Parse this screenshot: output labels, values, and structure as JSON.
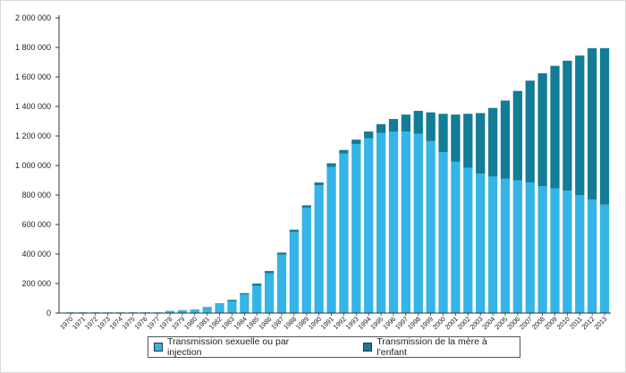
{
  "chart_data": {
    "type": "bar",
    "stacked": true,
    "categories": [
      "1970",
      "1971",
      "1972",
      "1973",
      "1974",
      "1975",
      "1976",
      "1977",
      "1978",
      "1979",
      "1980",
      "1981",
      "1982",
      "1983",
      "1984",
      "1985",
      "1986",
      "1987",
      "1988",
      "1989",
      "1990",
      "1991",
      "1992",
      "1993",
      "1994",
      "1995",
      "1996",
      "1997",
      "1998",
      "1999",
      "2000",
      "2001",
      "2002",
      "2003",
      "2004",
      "2005",
      "2006",
      "2007",
      "2008",
      "2009",
      "2010",
      "2011",
      "2012",
      "2013"
    ],
    "series": [
      {
        "name": "Transmission sexuelle ou par injection",
        "color": "#35b4e8",
        "values": [
          5000,
          5000,
          5000,
          5000,
          5000,
          5000,
          5000,
          5000,
          15000,
          20000,
          25000,
          35000,
          60000,
          80000,
          125000,
          185000,
          270000,
          395000,
          550000,
          715000,
          865000,
          990000,
          1080000,
          1145000,
          1185000,
          1220000,
          1230000,
          1230000,
          1215000,
          1165000,
          1090000,
          1025000,
          985000,
          945000,
          925000,
          910000,
          900000,
          885000,
          860000,
          845000,
          830000,
          800000,
          770000,
          735000
        ]
      },
      {
        "name": "Transmission de la mère à l'enfant",
        "color": "#137c96",
        "values": [
          0,
          0,
          0,
          0,
          0,
          0,
          0,
          0,
          0,
          0,
          0,
          5000,
          5000,
          10000,
          10000,
          15000,
          15000,
          15000,
          15000,
          15000,
          20000,
          25000,
          25000,
          30000,
          45000,
          60000,
          85000,
          115000,
          155000,
          195000,
          260000,
          320000,
          365000,
          410000,
          465000,
          530000,
          605000,
          690000,
          765000,
          830000,
          880000,
          945000,
          1025000,
          1060000
        ]
      }
    ],
    "ylim": [
      0,
      2000000
    ],
    "yticks": [
      "0",
      "200 000",
      "400 000",
      "600 000",
      "800 000",
      "1 000 000",
      "1 200 000",
      "1 400 000",
      "1 600 000",
      "1 800 000",
      "2 000 000"
    ],
    "ytick_values": [
      0,
      200000,
      400000,
      600000,
      800000,
      1000000,
      1200000,
      1400000,
      1600000,
      1800000,
      2000000
    ],
    "grid": false,
    "legend_position": "bottom-center"
  },
  "legend": {
    "item1_label": "Transmission sexuelle ou par injection",
    "item2_label": "Transmission de la mère à l'enfant"
  }
}
